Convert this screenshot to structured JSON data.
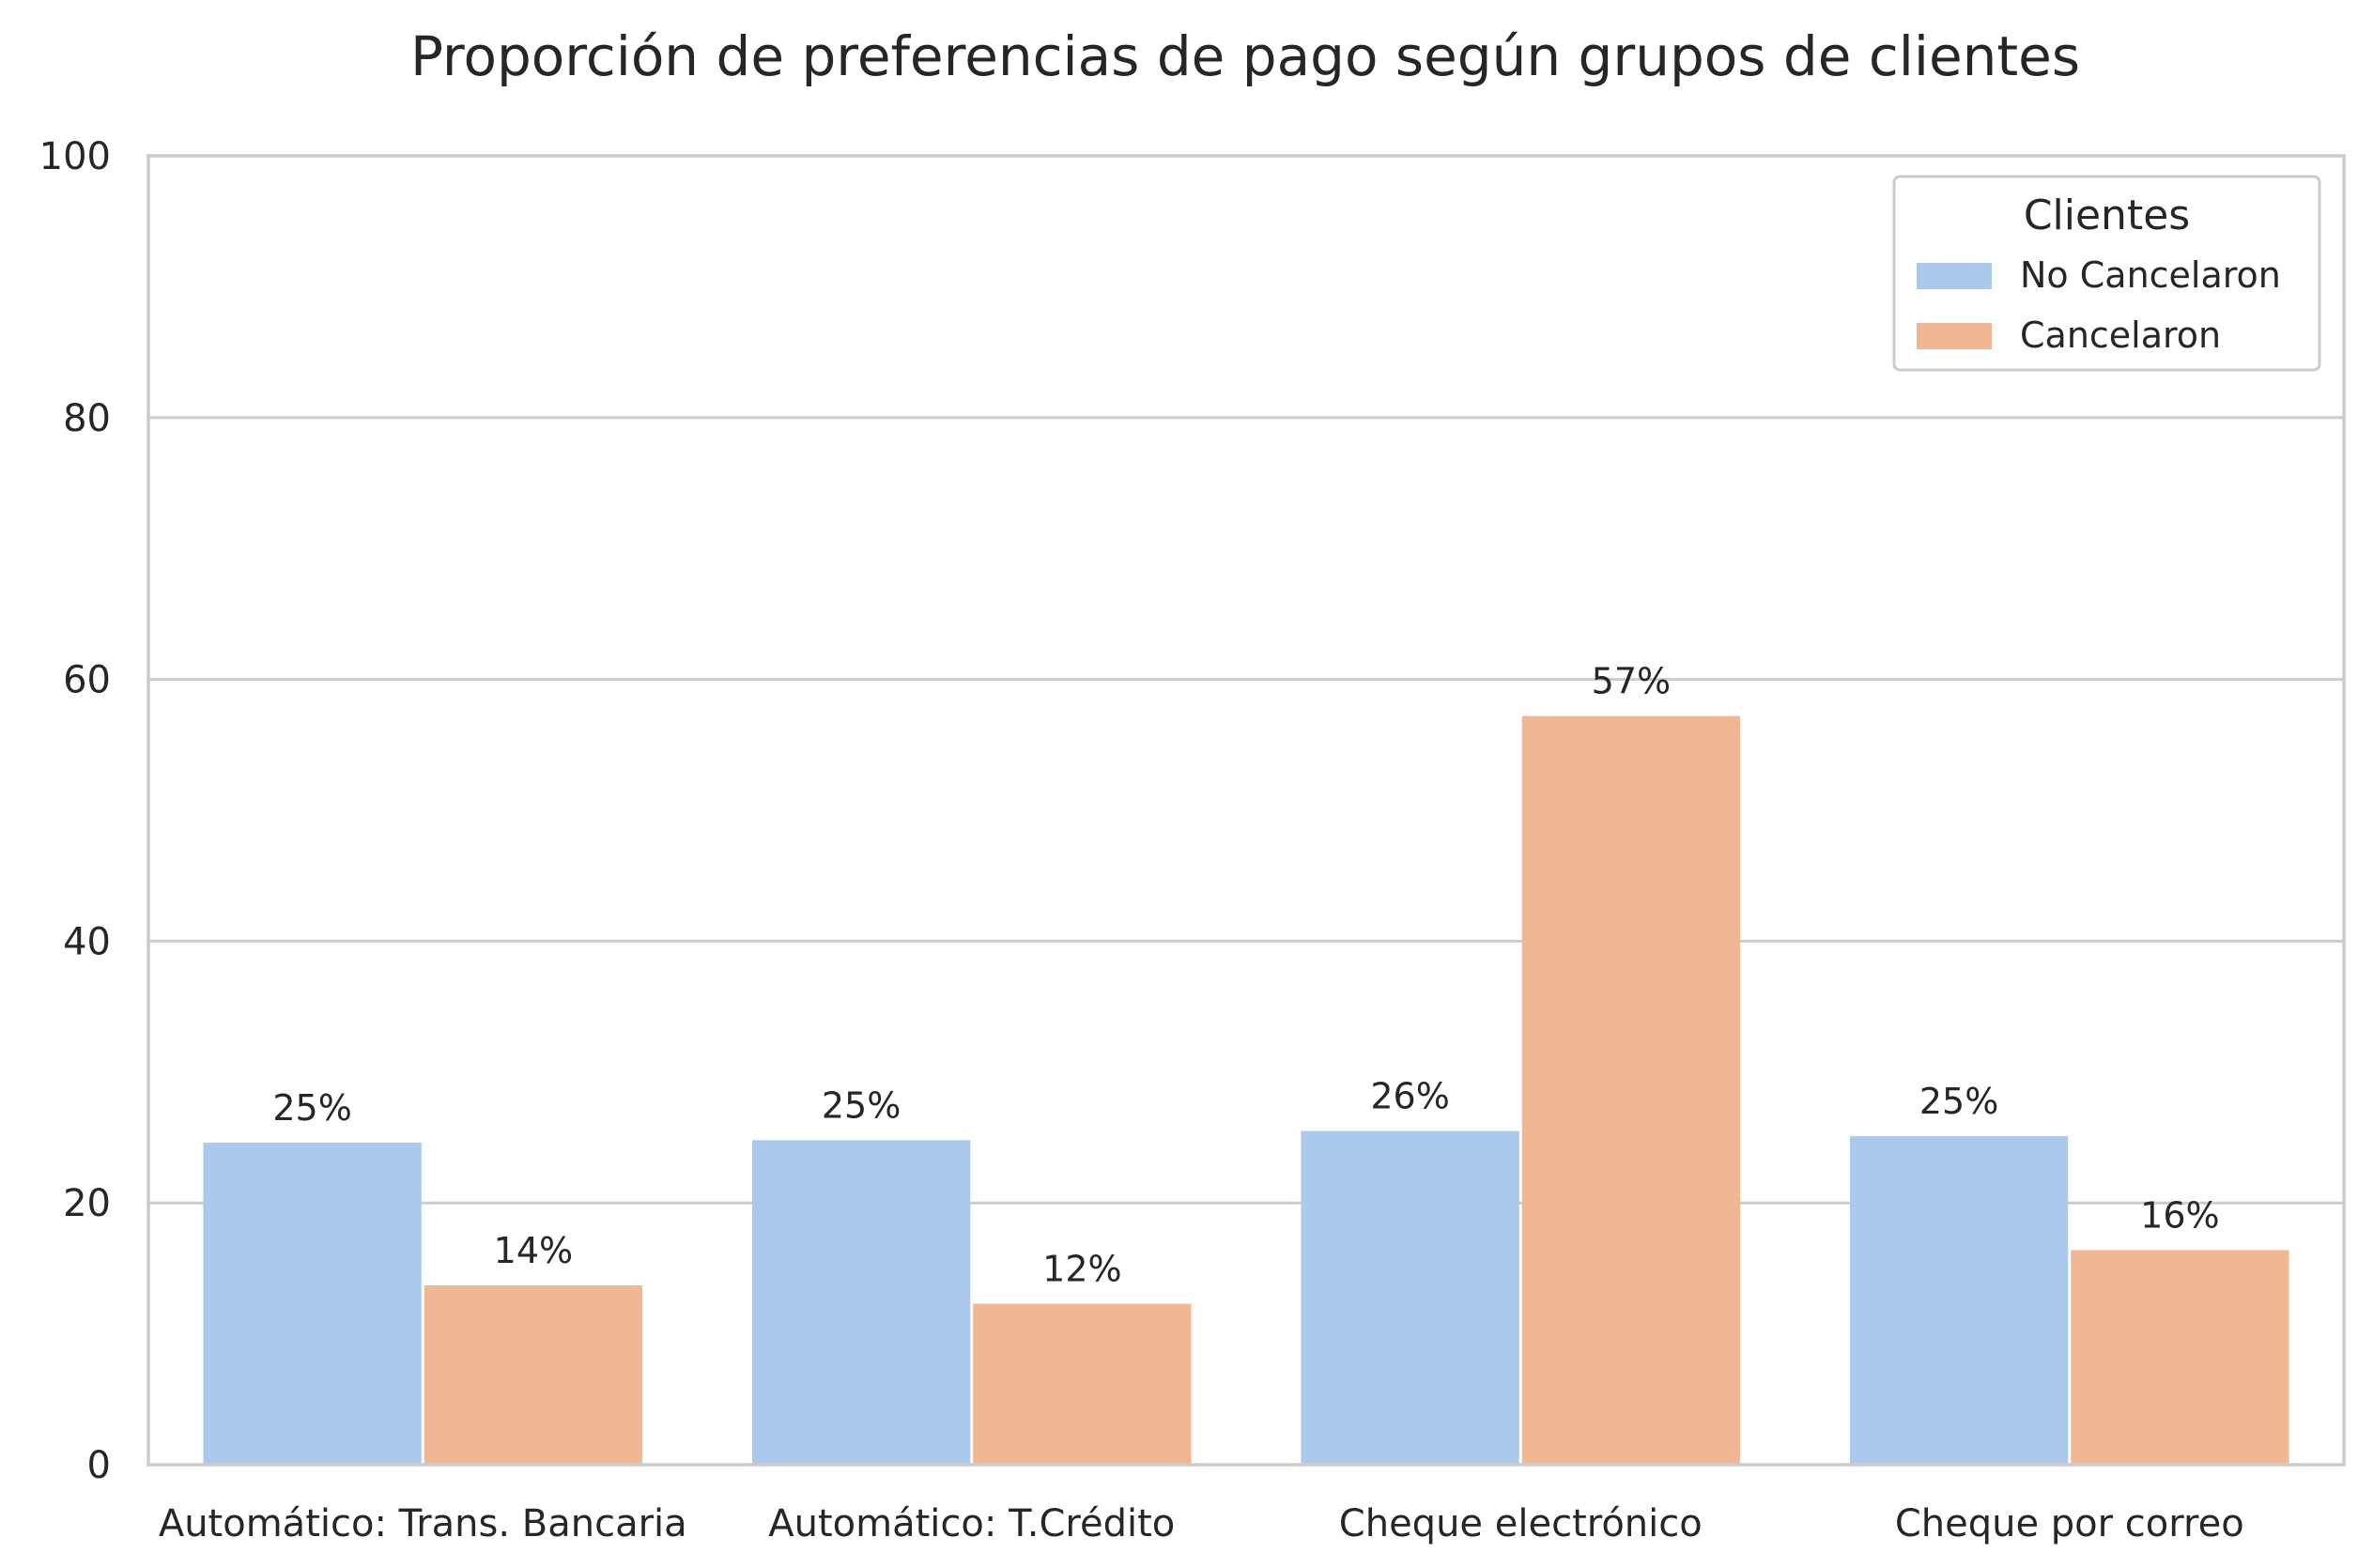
{
  "chart_data": {
    "type": "bar",
    "title": "Proporción de preferencias de pago según grupos de  clientes",
    "xlabel": "",
    "ylabel": "",
    "ylim": [
      0,
      100
    ],
    "yticks": [
      0,
      20,
      40,
      60,
      80,
      100
    ],
    "grid": true,
    "categories": [
      "Automático: Trans. Bancaria",
      "Automático: T.Crédito",
      "Cheque electrónico",
      "Cheque por correo"
    ],
    "series": [
      {
        "name": "No Cancelaron",
        "color": "#abc9ec",
        "values": [
          24.6,
          24.8,
          25.5,
          25.1
        ],
        "labels": [
          "25%",
          "25%",
          "26%",
          "25%"
        ]
      },
      {
        "name": "Cancelaron",
        "color": "#f0b792",
        "values": [
          13.7,
          12.3,
          57.2,
          16.4
        ],
        "labels": [
          "14%",
          "12%",
          "57%",
          "16%"
        ]
      }
    ],
    "legend": {
      "title": "Clientes",
      "placement": "top-right"
    }
  }
}
